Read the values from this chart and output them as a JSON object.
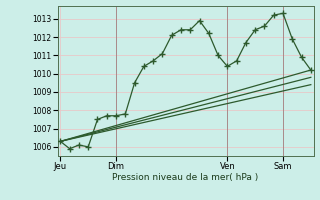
{
  "title": "Pression niveau de la mer( hPa )",
  "bg_color": "#cceee8",
  "plot_bg": "#cceee8",
  "grid_color": "#e8c8c8",
  "line_color": "#2d5a2d",
  "marker_color": "#2d5a2d",
  "ylim": [
    1005.5,
    1013.7
  ],
  "yticks": [
    1006,
    1007,
    1008,
    1009,
    1010,
    1011,
    1012,
    1013
  ],
  "xtick_labels": [
    "Jeu",
    "Dim",
    "Ven",
    "Sam"
  ],
  "xtick_positions": [
    0,
    6,
    18,
    24
  ],
  "vline_positions": [
    6,
    18,
    24
  ],
  "series1_x": [
    0,
    1,
    2,
    3,
    4,
    5,
    6,
    7,
    8,
    9,
    10,
    11,
    12,
    13,
    14,
    15,
    16,
    17,
    18,
    19,
    20,
    21,
    22,
    23,
    24,
    25,
    26,
    27
  ],
  "series1_y": [
    1006.3,
    1005.9,
    1006.1,
    1006.0,
    1007.5,
    1007.7,
    1007.7,
    1007.8,
    1009.5,
    1010.4,
    1010.7,
    1011.1,
    1012.1,
    1012.4,
    1012.4,
    1012.9,
    1012.2,
    1011.0,
    1010.4,
    1010.7,
    1011.7,
    1012.4,
    1012.6,
    1013.2,
    1013.3,
    1011.9,
    1010.9,
    1010.2
  ],
  "series2_x": [
    0,
    27
  ],
  "series2_y": [
    1006.3,
    1010.2
  ],
  "series3_x": [
    0,
    27
  ],
  "series3_y": [
    1006.3,
    1009.8
  ],
  "series4_x": [
    0,
    27
  ],
  "series4_y": [
    1006.3,
    1009.4
  ],
  "xlim": [
    -0.3,
    27.3
  ]
}
